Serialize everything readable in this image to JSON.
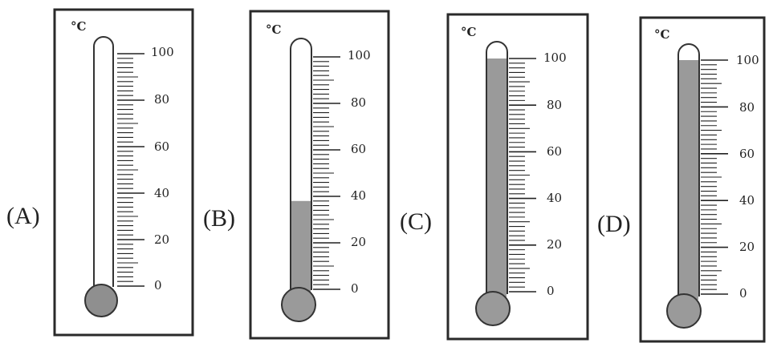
{
  "options": [
    {
      "label": "(A)",
      "unit": "°C",
      "fill_percent": 0,
      "scale": [
        "100",
        "80",
        "60",
        "40",
        "20",
        "0"
      ]
    },
    {
      "label": "(B)",
      "unit": "°C",
      "fill_percent": 38,
      "scale": [
        "100",
        "80",
        "60",
        "40",
        "20",
        "0"
      ]
    },
    {
      "label": "(C)",
      "unit": "°C",
      "fill_percent": 100,
      "scale": [
        "100",
        "80",
        "60",
        "40",
        "20",
        "0"
      ]
    },
    {
      "label": "(D)",
      "unit": "°C",
      "fill_percent": 100,
      "scale": [
        "100",
        "80",
        "60",
        "40",
        "20",
        "0"
      ]
    }
  ],
  "colors": {
    "liquid": "#9a9a9a",
    "bulb_a": "#8f8f8f",
    "frame": "#2a2a2a",
    "tube": "#ffffff"
  }
}
